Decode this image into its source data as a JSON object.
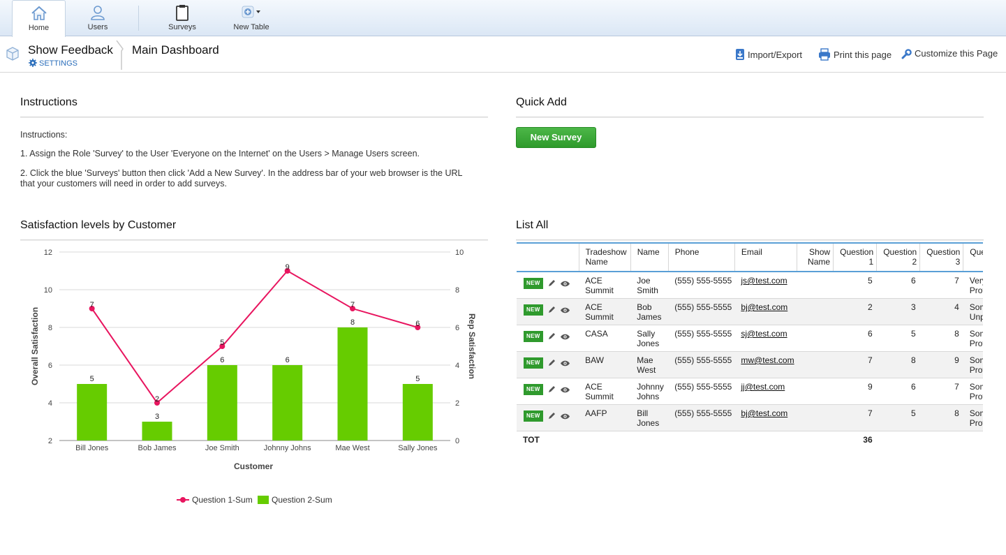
{
  "nav": {
    "items": [
      {
        "label": "Home",
        "icon": "home-icon"
      },
      {
        "label": "Users",
        "icon": "user-icon"
      },
      {
        "label": "Surveys",
        "icon": "clipboard-icon"
      },
      {
        "label": "New Table",
        "icon": "add-circle-icon"
      }
    ]
  },
  "header": {
    "app_title": "Show Feedback",
    "settings_label": "SETTINGS",
    "page_title": "Main Dashboard",
    "toolbar": {
      "import_label": "Import/Export",
      "print_label": "Print this page",
      "customize_label": "Customize this Page"
    }
  },
  "instructions": {
    "title": "Instructions",
    "heading": "Instructions:",
    "step1": "1. Assign the Role 'Survey' to the User 'Everyone on the Internet' on the Users > Manage Users screen.",
    "step2_line1": "2. Click the blue 'Surveys' button then click 'Add a New Survey'. In the address bar of your web browser is the URL",
    "step2_line2": "that your customers will need in order to add surveys."
  },
  "quick_add": {
    "title": "Quick Add",
    "button_label": "New Survey"
  },
  "chart_section": {
    "title": "Satisfaction levels by Customer"
  },
  "chart_data": {
    "type": "bar",
    "categories": [
      "Bill Jones",
      "Bob James",
      "Joe Smith",
      "Johnny Johns",
      "Mae West",
      "Sally Jones"
    ],
    "series": [
      {
        "name": "Question 2-Sum",
        "kind": "bar",
        "axis": "left",
        "values": [
          5,
          3,
          6,
          6,
          8,
          5
        ],
        "color": "#66cc00"
      },
      {
        "name": "Question 1-Sum",
        "kind": "line",
        "axis": "right",
        "values": [
          7,
          2,
          5,
          9,
          7,
          6
        ],
        "color": "#e8155f"
      }
    ],
    "xlabel": "Customer",
    "ylabel": "Overall Satisfaction",
    "y2label": "Rep Satisfaction",
    "ylim": [
      2,
      12
    ],
    "y2lim": [
      0,
      10
    ],
    "yticks": [
      "2",
      "4",
      "6",
      "8",
      "10",
      "12"
    ],
    "y2ticks": [
      "0",
      "2",
      "4",
      "6",
      "8",
      "10"
    ],
    "bar_labels": [
      "5",
      "3",
      "6",
      "6",
      "8",
      "5"
    ],
    "line_labels": [
      "7",
      "2",
      "5",
      "9",
      "7",
      "6"
    ],
    "legend": "bottom-center",
    "grid": true
  },
  "list": {
    "title": "List All",
    "badge": "NEW",
    "columns": [
      "Tradeshow Name",
      "Name",
      "Phone",
      "Email",
      "Show Name",
      "Question 1",
      "Question 2",
      "Question 3",
      "Ques"
    ],
    "column_lines": [
      [
        "Tradeshow",
        "Name"
      ],
      [
        "Name",
        ""
      ],
      [
        "Phone",
        ""
      ],
      [
        "Email",
        ""
      ],
      [
        "Show",
        "Name"
      ],
      [
        "Question",
        "1"
      ],
      [
        "Question",
        "2"
      ],
      [
        "Question",
        "3"
      ],
      [
        "Ques",
        ""
      ]
    ],
    "rows": [
      {
        "tradeshow": [
          "ACE",
          "Summit"
        ],
        "name": [
          "Joe",
          "Smith"
        ],
        "phone": "(555) 555-5555",
        "email": "js@test.com",
        "show": "",
        "q1": "5",
        "q2": "6",
        "q3": "7",
        "q4": [
          "Very",
          "Profe"
        ]
      },
      {
        "tradeshow": [
          "ACE",
          "Summit"
        ],
        "name": [
          "Bob",
          "James"
        ],
        "phone": "(555) 555-5555",
        "email": "bj@test.com",
        "show": "",
        "q1": "2",
        "q2": "3",
        "q3": "4",
        "q4": [
          "Som",
          "Unpr"
        ]
      },
      {
        "tradeshow": [
          "CASA",
          ""
        ],
        "name": [
          "Sally",
          "Jones"
        ],
        "phone": "(555) 555-5555",
        "email": "sj@test.com",
        "show": "",
        "q1": "6",
        "q2": "5",
        "q3": "8",
        "q4": [
          "Som",
          "Profe"
        ]
      },
      {
        "tradeshow": [
          "BAW",
          ""
        ],
        "name": [
          "Mae",
          "West"
        ],
        "phone": "(555) 555-5555",
        "email": "mw@test.com",
        "show": "",
        "q1": "7",
        "q2": "8",
        "q3": "9",
        "q4": [
          "Som",
          "Profe"
        ]
      },
      {
        "tradeshow": [
          "ACE",
          "Summit"
        ],
        "name": [
          "Johnny",
          "Johns"
        ],
        "phone": "(555) 555-5555",
        "email": "jj@test.com",
        "show": "",
        "q1": "9",
        "q2": "6",
        "q3": "7",
        "q4": [
          "Som",
          "Profe"
        ]
      },
      {
        "tradeshow": [
          "AAFP",
          ""
        ],
        "name": [
          "Bill",
          "Jones"
        ],
        "phone": "(555) 555-5555",
        "email": "bj@test.com",
        "show": "",
        "q1": "7",
        "q2": "5",
        "q3": "8",
        "q4": [
          "Som",
          "Profe"
        ]
      }
    ],
    "total_label": "TOT",
    "total_q1": "36"
  },
  "colors": {
    "accent_blue": "#2a6ebb",
    "green_button": "#3aa836",
    "bar_green": "#66cc00",
    "line_pink": "#e8155f"
  }
}
